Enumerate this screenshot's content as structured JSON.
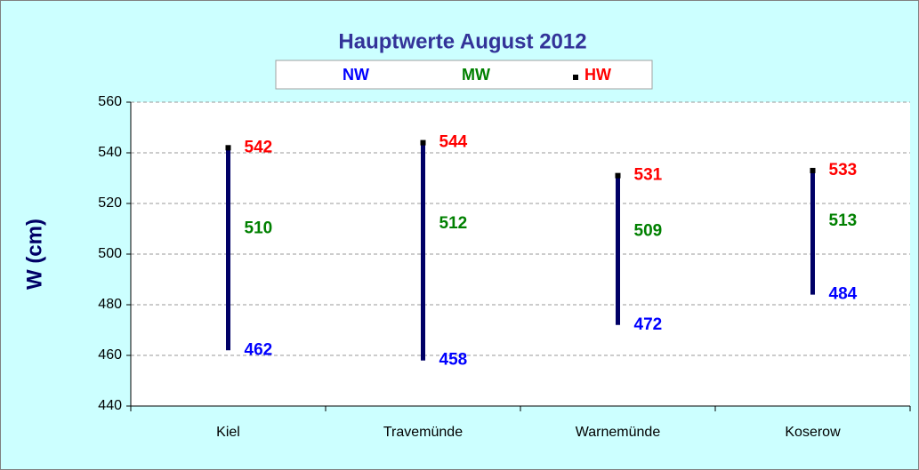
{
  "chart_data": {
    "type": "hilo",
    "title": "Hauptwerte August 2012",
    "ylabel": "W (cm)",
    "categories": [
      "Kiel",
      "Travemünde",
      "Warnemünde",
      "Koserow"
    ],
    "series": [
      {
        "name": "NW",
        "color": "#0000ff",
        "values": [
          462,
          458,
          472,
          484
        ]
      },
      {
        "name": "MW",
        "color": "#008000",
        "values": [
          510,
          512,
          509,
          513
        ]
      },
      {
        "name": "HW",
        "color": "#ff0000",
        "values": [
          542,
          544,
          531,
          533
        ]
      }
    ],
    "bar_color": "#000066",
    "marker_color": "#000000",
    "ylim": [
      440,
      560
    ],
    "yticks": [
      440,
      460,
      480,
      500,
      520,
      540,
      560
    ],
    "grid": true,
    "legend": "top"
  }
}
